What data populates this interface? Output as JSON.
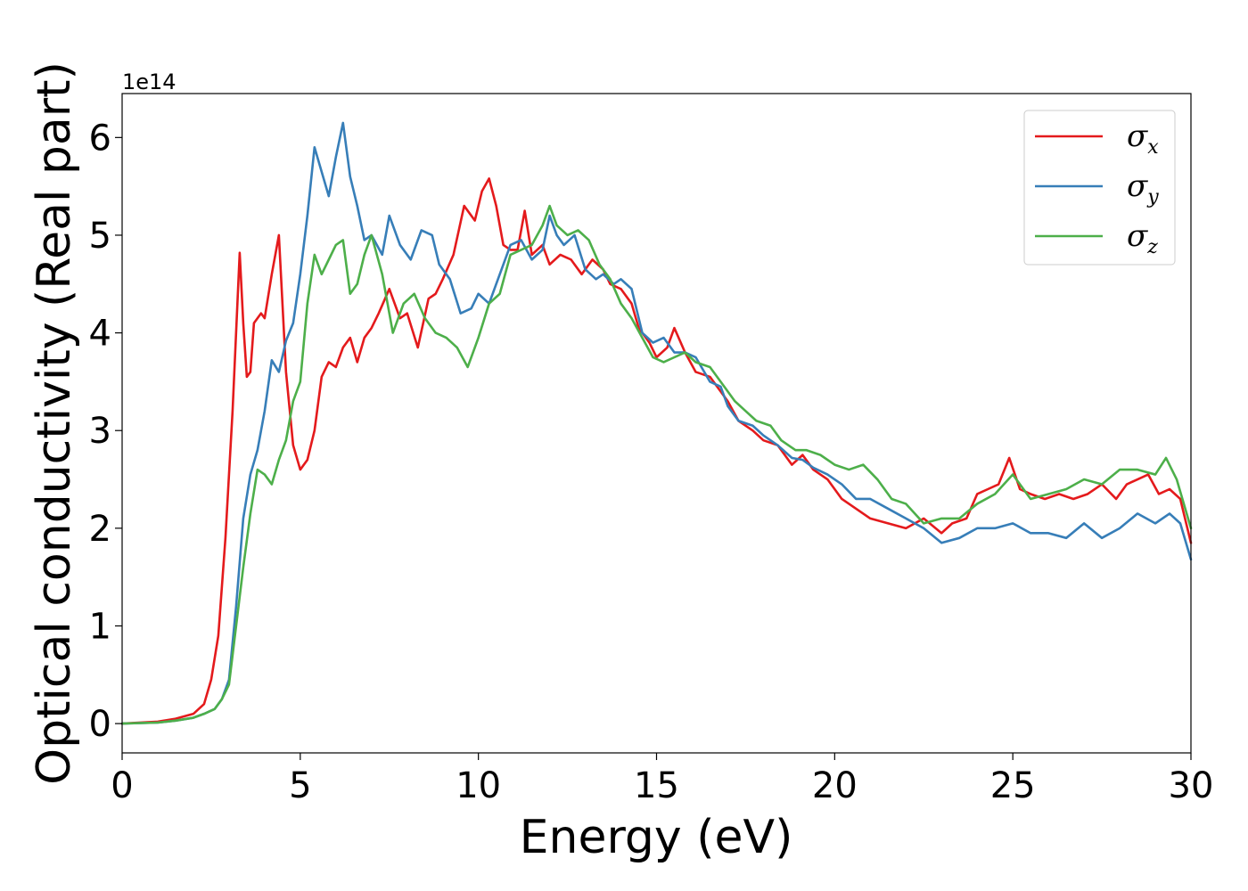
{
  "chart_data": {
    "type": "line",
    "title": "",
    "xlabel": "Energy (eV)",
    "ylabel": "Optical conductivity (Real part)",
    "y_offset_text": "1e14",
    "xlim": [
      0,
      30
    ],
    "ylim": [
      -0.3,
      6.45
    ],
    "x_ticks": [
      0,
      5,
      10,
      15,
      20,
      25,
      30
    ],
    "x_tick_labels": [
      "0",
      "5",
      "10",
      "15",
      "20",
      "25",
      "30"
    ],
    "y_ticks": [
      0,
      1,
      2,
      3,
      4,
      5,
      6
    ],
    "y_tick_labels": [
      "0",
      "1",
      "2",
      "3",
      "4",
      "5",
      "6"
    ],
    "grid": false,
    "legend_position": "top-right",
    "series": [
      {
        "name": "σx",
        "symbol": "σ",
        "subscript": "x",
        "color": "#e41a1c",
        "x": [
          0,
          1,
          1.5,
          2,
          2.3,
          2.5,
          2.7,
          2.9,
          3.1,
          3.3,
          3.4,
          3.5,
          3.6,
          3.7,
          3.9,
          4.0,
          4.2,
          4.4,
          4.6,
          4.8,
          5.0,
          5.2,
          5.4,
          5.6,
          5.8,
          6.0,
          6.2,
          6.4,
          6.6,
          6.8,
          7.0,
          7.2,
          7.5,
          7.8,
          8.0,
          8.3,
          8.6,
          8.8,
          9.0,
          9.3,
          9.6,
          9.9,
          10.1,
          10.3,
          10.5,
          10.7,
          10.9,
          11.1,
          11.3,
          11.5,
          11.8,
          12.0,
          12.3,
          12.6,
          12.9,
          13.2,
          13.5,
          13.7,
          14.0,
          14.3,
          14.5,
          14.8,
          15.0,
          15.3,
          15.5,
          15.8,
          16.1,
          16.5,
          16.8,
          17.0,
          17.3,
          17.7,
          18.0,
          18.4,
          18.8,
          19.1,
          19.4,
          19.8,
          20.2,
          20.6,
          21.0,
          21.5,
          22.0,
          22.5,
          23.0,
          23.3,
          23.7,
          24.0,
          24.3,
          24.6,
          24.9,
          25.2,
          25.5,
          25.9,
          26.3,
          26.7,
          27.1,
          27.5,
          27.9,
          28.2,
          28.5,
          28.8,
          29.1,
          29.4,
          29.7,
          30.0
        ],
        "y": [
          0,
          0.02,
          0.05,
          0.1,
          0.2,
          0.45,
          0.9,
          1.9,
          3.2,
          4.82,
          4.1,
          3.55,
          3.6,
          4.1,
          4.2,
          4.15,
          4.6,
          5.0,
          3.6,
          2.85,
          2.6,
          2.7,
          3.0,
          3.55,
          3.7,
          3.65,
          3.85,
          3.95,
          3.7,
          3.95,
          4.05,
          4.2,
          4.45,
          4.15,
          4.2,
          3.85,
          4.35,
          4.4,
          4.55,
          4.8,
          5.3,
          5.15,
          5.45,
          5.58,
          5.3,
          4.9,
          4.85,
          4.85,
          5.25,
          4.8,
          4.9,
          4.7,
          4.8,
          4.75,
          4.6,
          4.75,
          4.65,
          4.5,
          4.45,
          4.3,
          4.05,
          3.9,
          3.75,
          3.85,
          4.05,
          3.8,
          3.6,
          3.55,
          3.4,
          3.3,
          3.1,
          3.0,
          2.9,
          2.85,
          2.65,
          2.75,
          2.6,
          2.5,
          2.3,
          2.2,
          2.1,
          2.05,
          2.0,
          2.1,
          1.95,
          2.05,
          2.1,
          2.35,
          2.4,
          2.45,
          2.72,
          2.4,
          2.35,
          2.3,
          2.35,
          2.3,
          2.35,
          2.45,
          2.3,
          2.45,
          2.5,
          2.55,
          2.35,
          2.4,
          2.3,
          1.85
        ]
      },
      {
        "name": "σy",
        "symbol": "σ",
        "subscript": "y",
        "color": "#377eb8",
        "x": [
          0,
          1,
          1.5,
          2,
          2.3,
          2.6,
          2.8,
          3.0,
          3.2,
          3.4,
          3.6,
          3.8,
          4.0,
          4.2,
          4.4,
          4.6,
          4.8,
          5.0,
          5.2,
          5.4,
          5.6,
          5.8,
          6.0,
          6.2,
          6.4,
          6.6,
          6.8,
          7.0,
          7.3,
          7.5,
          7.8,
          8.1,
          8.4,
          8.7,
          8.9,
          9.2,
          9.5,
          9.8,
          10.0,
          10.3,
          10.6,
          10.9,
          11.2,
          11.5,
          11.8,
          12.0,
          12.2,
          12.4,
          12.7,
          13.0,
          13.3,
          13.5,
          13.8,
          14.0,
          14.3,
          14.6,
          14.9,
          15.2,
          15.5,
          15.8,
          16.1,
          16.5,
          16.8,
          17.0,
          17.3,
          17.7,
          18.0,
          18.4,
          18.8,
          19.1,
          19.4,
          19.8,
          20.2,
          20.6,
          21.0,
          21.5,
          22.0,
          22.5,
          23.0,
          23.5,
          24.0,
          24.5,
          25.0,
          25.5,
          26.0,
          26.5,
          27.0,
          27.5,
          28.0,
          28.5,
          29.0,
          29.4,
          29.7,
          30.0
        ],
        "y": [
          0,
          0.01,
          0.03,
          0.06,
          0.1,
          0.15,
          0.25,
          0.45,
          1.2,
          2.1,
          2.55,
          2.8,
          3.2,
          3.72,
          3.6,
          3.92,
          4.1,
          4.6,
          5.2,
          5.9,
          5.65,
          5.4,
          5.8,
          6.15,
          5.6,
          5.3,
          4.95,
          5.0,
          4.8,
          5.2,
          4.9,
          4.75,
          5.05,
          5.0,
          4.7,
          4.55,
          4.2,
          4.25,
          4.4,
          4.3,
          4.6,
          4.9,
          4.95,
          4.75,
          4.85,
          5.2,
          5.0,
          4.9,
          5.0,
          4.65,
          4.55,
          4.6,
          4.5,
          4.55,
          4.45,
          4.0,
          3.9,
          3.95,
          3.8,
          3.8,
          3.75,
          3.5,
          3.45,
          3.25,
          3.1,
          3.05,
          2.95,
          2.85,
          2.72,
          2.7,
          2.62,
          2.55,
          2.45,
          2.3,
          2.3,
          2.2,
          2.1,
          2.0,
          1.85,
          1.9,
          2.0,
          2.0,
          2.05,
          1.95,
          1.95,
          1.9,
          2.05,
          1.9,
          2.0,
          2.15,
          2.05,
          2.15,
          2.05,
          1.68
        ]
      },
      {
        "name": "σz",
        "symbol": "σ",
        "subscript": "z",
        "color": "#4daf4a",
        "x": [
          0,
          1,
          1.5,
          2,
          2.3,
          2.6,
          2.8,
          3.0,
          3.2,
          3.4,
          3.6,
          3.8,
          4.0,
          4.2,
          4.4,
          4.6,
          4.8,
          5.0,
          5.2,
          5.4,
          5.6,
          5.8,
          6.0,
          6.2,
          6.4,
          6.6,
          6.8,
          7.0,
          7.3,
          7.6,
          7.9,
          8.2,
          8.5,
          8.8,
          9.1,
          9.4,
          9.7,
          10.0,
          10.3,
          10.6,
          10.9,
          11.2,
          11.5,
          11.8,
          12.0,
          12.2,
          12.5,
          12.8,
          13.1,
          13.4,
          13.7,
          14.0,
          14.3,
          14.6,
          14.9,
          15.2,
          15.5,
          15.8,
          16.1,
          16.5,
          16.9,
          17.2,
          17.5,
          17.8,
          18.2,
          18.5,
          18.9,
          19.2,
          19.6,
          20.0,
          20.4,
          20.8,
          21.2,
          21.6,
          22.0,
          22.5,
          23.0,
          23.5,
          24.0,
          24.5,
          25.0,
          25.5,
          26.0,
          26.5,
          27.0,
          27.5,
          28.0,
          28.5,
          29.0,
          29.3,
          29.6,
          30.0
        ],
        "y": [
          0,
          0.01,
          0.03,
          0.06,
          0.1,
          0.15,
          0.25,
          0.4,
          1.0,
          1.6,
          2.15,
          2.6,
          2.55,
          2.45,
          2.7,
          2.9,
          3.3,
          3.5,
          4.3,
          4.8,
          4.6,
          4.75,
          4.9,
          4.95,
          4.4,
          4.5,
          4.8,
          5.0,
          4.6,
          4.0,
          4.3,
          4.4,
          4.15,
          4.0,
          3.95,
          3.85,
          3.65,
          3.95,
          4.3,
          4.4,
          4.8,
          4.85,
          4.9,
          5.1,
          5.3,
          5.1,
          5.0,
          5.05,
          4.95,
          4.7,
          4.55,
          4.3,
          4.15,
          3.95,
          3.75,
          3.7,
          3.75,
          3.8,
          3.7,
          3.65,
          3.45,
          3.3,
          3.2,
          3.1,
          3.05,
          2.9,
          2.8,
          2.8,
          2.75,
          2.65,
          2.6,
          2.65,
          2.5,
          2.3,
          2.25,
          2.05,
          2.1,
          2.1,
          2.25,
          2.35,
          2.55,
          2.3,
          2.35,
          2.4,
          2.5,
          2.45,
          2.6,
          2.6,
          2.55,
          2.72,
          2.5,
          2.0
        ]
      }
    ]
  }
}
